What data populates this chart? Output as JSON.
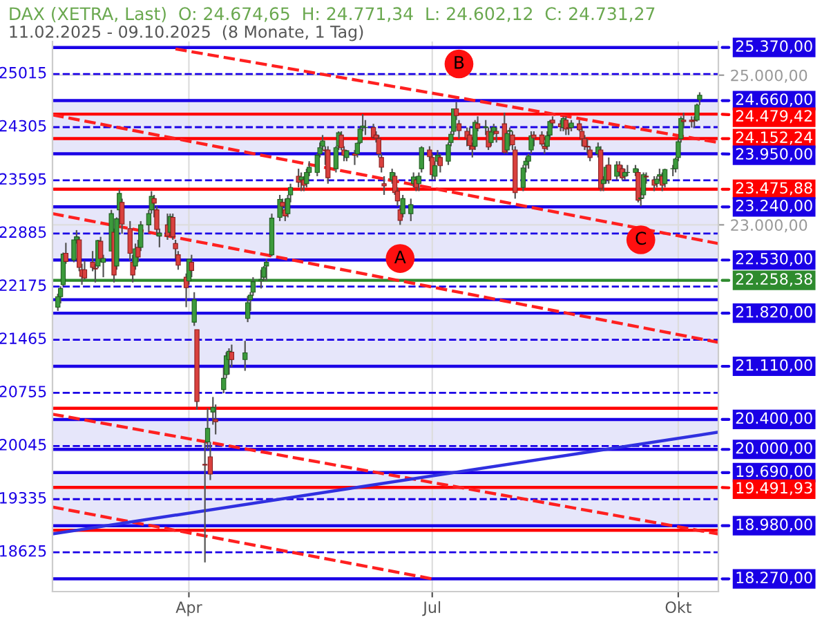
{
  "chart_data": {
    "type": "candlestick",
    "title": "DAX (XETRA, Last)  O: 24.674,65  H: 24.771,34  L: 24.602,12  C: 24.731,27",
    "subtitle": "11.02.2025 - 09.10.2025  (8 Monate, 1 Tag)",
    "x": [
      "2025-02-11",
      "2025-02-12",
      "2025-02-13",
      "2025-02-14",
      "2025-02-17",
      "2025-02-18",
      "2025-02-19",
      "2025-02-20",
      "2025-02-21",
      "2025-02-24",
      "2025-02-25",
      "2025-02-26",
      "2025-02-27",
      "2025-02-28",
      "2025-03-03",
      "2025-03-04",
      "2025-03-05",
      "2025-03-06",
      "2025-03-07",
      "2025-03-10",
      "2025-03-11",
      "2025-03-12",
      "2025-03-13",
      "2025-03-14",
      "2025-03-17",
      "2025-03-18",
      "2025-03-19",
      "2025-03-20",
      "2025-03-21",
      "2025-03-24",
      "2025-03-25",
      "2025-03-26",
      "2025-03-27",
      "2025-03-28",
      "2025-03-31",
      "2025-04-01",
      "2025-04-02",
      "2025-04-03",
      "2025-04-04",
      "2025-04-07",
      "2025-04-08",
      "2025-04-09",
      "2025-04-10",
      "2025-04-11",
      "2025-04-14",
      "2025-04-15",
      "2025-04-16",
      "2025-04-17",
      "2025-04-22",
      "2025-04-23",
      "2025-04-24",
      "2025-04-25",
      "2025-04-28",
      "2025-04-29",
      "2025-04-30",
      "2025-05-02",
      "2025-05-05",
      "2025-05-06",
      "2025-05-07",
      "2025-05-08",
      "2025-05-09",
      "2025-05-12",
      "2025-05-13",
      "2025-05-14",
      "2025-05-15",
      "2025-05-16",
      "2025-05-19",
      "2025-05-20",
      "2025-05-21",
      "2025-05-22",
      "2025-05-23",
      "2025-05-26",
      "2025-05-27",
      "2025-05-28",
      "2025-05-29",
      "2025-05-30",
      "2025-06-02",
      "2025-06-03",
      "2025-06-04",
      "2025-06-05",
      "2025-06-06",
      "2025-06-09",
      "2025-06-10",
      "2025-06-11",
      "2025-06-12",
      "2025-06-13",
      "2025-06-16",
      "2025-06-17",
      "2025-06-18",
      "2025-06-19",
      "2025-06-20",
      "2025-06-23",
      "2025-06-24",
      "2025-06-25",
      "2025-06-26",
      "2025-06-27",
      "2025-06-30",
      "2025-07-01",
      "2025-07-02",
      "2025-07-03",
      "2025-07-04",
      "2025-07-07",
      "2025-07-08",
      "2025-07-09",
      "2025-07-10",
      "2025-07-11",
      "2025-07-14",
      "2025-07-15",
      "2025-07-16",
      "2025-07-17",
      "2025-07-18",
      "2025-07-21",
      "2025-07-22",
      "2025-07-23",
      "2025-07-24",
      "2025-07-25",
      "2025-07-28",
      "2025-07-29",
      "2025-07-30",
      "2025-07-31",
      "2025-08-01",
      "2025-08-04",
      "2025-08-05",
      "2025-08-06",
      "2025-08-07",
      "2025-08-08",
      "2025-08-11",
      "2025-08-12",
      "2025-08-13",
      "2025-08-14",
      "2025-08-15",
      "2025-08-18",
      "2025-08-19",
      "2025-08-20",
      "2025-08-21",
      "2025-08-22",
      "2025-08-25",
      "2025-08-26",
      "2025-08-27",
      "2025-08-28",
      "2025-08-29",
      "2025-09-01",
      "2025-09-02",
      "2025-09-03",
      "2025-09-04",
      "2025-09-05",
      "2025-09-08",
      "2025-09-09",
      "2025-09-10",
      "2025-09-11",
      "2025-09-12",
      "2025-09-15",
      "2025-09-16",
      "2025-09-17",
      "2025-09-18",
      "2025-09-19",
      "2025-09-22",
      "2025-09-23",
      "2025-09-24",
      "2025-09-25",
      "2025-09-26",
      "2025-09-29",
      "2025-09-30",
      "2025-10-01",
      "2025-10-02",
      "2025-10-03",
      "2025-10-06",
      "2025-10-07",
      "2025-10-08",
      "2025-10-09"
    ],
    "ohlc": [
      [
        21900,
        22080,
        21850,
        22040
      ],
      [
        22040,
        22180,
        21950,
        22150
      ],
      [
        22200,
        22630,
        22180,
        22610
      ],
      [
        22620,
        22760,
        22480,
        22510
      ],
      [
        22530,
        22800,
        22500,
        22800
      ],
      [
        22800,
        22930,
        22750,
        22840
      ],
      [
        22800,
        22840,
        22380,
        22430
      ],
      [
        22400,
        22480,
        22200,
        22310
      ],
      [
        22400,
        22520,
        22270,
        22290
      ],
      [
        22500,
        22650,
        22380,
        22430
      ],
      [
        22420,
        22480,
        22230,
        22410
      ],
      [
        22450,
        22800,
        22420,
        22790
      ],
      [
        22780,
        22840,
        22500,
        22550
      ],
      [
        22500,
        22600,
        22300,
        22550
      ],
      [
        22650,
        23200,
        22650,
        23150
      ],
      [
        22900,
        22950,
        22230,
        22330
      ],
      [
        22450,
        23100,
        22400,
        23080
      ],
      [
        23200,
        23476,
        23000,
        23420
      ],
      [
        23300,
        23350,
        22880,
        23010
      ],
      [
        22950,
        23050,
        22520,
        22620
      ],
      [
        22500,
        22600,
        22230,
        22330
      ],
      [
        22450,
        22750,
        22400,
        22680
      ],
      [
        22700,
        22800,
        22500,
        22570
      ],
      [
        22700,
        23050,
        22650,
        23000
      ],
      [
        23000,
        23200,
        22900,
        23150
      ],
      [
        23200,
        23450,
        23150,
        23380
      ],
      [
        23350,
        23400,
        23100,
        23290
      ],
      [
        23200,
        23250,
        22850,
        22940
      ],
      [
        22850,
        22950,
        22700,
        22890
      ],
      [
        23000,
        23150,
        22800,
        22850
      ],
      [
        22900,
        23150,
        22850,
        23110
      ],
      [
        23100,
        23150,
        22800,
        22840
      ],
      [
        22750,
        22800,
        22550,
        22680
      ],
      [
        22600,
        22650,
        22400,
        22460
      ],
      [
        22300,
        22350,
        21900,
        22160
      ],
      [
        22250,
        22550,
        22200,
        22540
      ],
      [
        22500,
        22600,
        22300,
        22390
      ],
      [
        21700,
        22100,
        21650,
        22000
      ],
      [
        21600,
        21600,
        20530,
        20640
      ],
      [
        19800,
        20100,
        18490,
        19790
      ],
      [
        20100,
        20550,
        20000,
        20280
      ],
      [
        19900,
        20100,
        19590,
        19670
      ],
      [
        20500,
        20700,
        20330,
        20560
      ],
      [
        20400,
        20600,
        20200,
        20370
      ],
      [
        20800,
        21100,
        20750,
        20950
      ],
      [
        21000,
        21300,
        20950,
        21250
      ],
      [
        21200,
        21350,
        21000,
        21310
      ],
      [
        21300,
        21400,
        21100,
        21200
      ],
      [
        21200,
        21450,
        21050,
        21290
      ],
      [
        21750,
        22050,
        21700,
        21960
      ],
      [
        22000,
        22100,
        21850,
        22060
      ],
      [
        22100,
        22300,
        22050,
        22240
      ],
      [
        22250,
        22400,
        22150,
        22270
      ],
      [
        22300,
        22450,
        22250,
        22430
      ],
      [
        22450,
        22550,
        22250,
        22500
      ],
      [
        22600,
        23150,
        22580,
        23090
      ],
      [
        23100,
        23400,
        23050,
        23340
      ],
      [
        23300,
        23350,
        23150,
        23250
      ],
      [
        23200,
        23350,
        23050,
        23120
      ],
      [
        23150,
        23400,
        23100,
        23350
      ],
      [
        23400,
        23550,
        23300,
        23500
      ],
      [
        23650,
        23750,
        23500,
        23570
      ],
      [
        23600,
        23700,
        23450,
        23640
      ],
      [
        23600,
        23650,
        23450,
        23530
      ],
      [
        23550,
        23750,
        23500,
        23700
      ],
      [
        23700,
        23850,
        23650,
        23770
      ],
      [
        23700,
        23950,
        23650,
        23930
      ],
      [
        23950,
        24100,
        23900,
        24030
      ],
      [
        24050,
        24200,
        24000,
        24120
      ],
      [
        24000,
        24050,
        23800,
        23990
      ],
      [
        24000,
        24050,
        23550,
        23630
      ],
      [
        23750,
        24050,
        23700,
        24030
      ],
      [
        24050,
        24250,
        24000,
        24230
      ],
      [
        24200,
        24250,
        24000,
        24030
      ],
      [
        24000,
        24050,
        23850,
        23930
      ],
      [
        23900,
        24000,
        23850,
        23990
      ],
      [
        23950,
        24000,
        23800,
        23930
      ],
      [
        23950,
        24100,
        23900,
        24090
      ],
      [
        24100,
        24300,
        24080,
        24280
      ],
      [
        24300,
        24480,
        24250,
        24320
      ],
      [
        24300,
        24400,
        24200,
        24300
      ],
      [
        24300,
        24350,
        24150,
        24170
      ],
      [
        24200,
        24250,
        24100,
        24160
      ],
      [
        24150,
        24200,
        23900,
        23950
      ],
      [
        23900,
        23950,
        23700,
        23770
      ],
      [
        23550,
        23650,
        23400,
        23520
      ],
      [
        23600,
        23750,
        23550,
        23700
      ],
      [
        23650,
        23700,
        23400,
        23430
      ],
      [
        23450,
        23500,
        23250,
        23320
      ],
      [
        23200,
        23250,
        23000,
        23060
      ],
      [
        23150,
        23400,
        23100,
        23350
      ],
      [
        23150,
        23350,
        23050,
        23270
      ],
      [
        23550,
        23700,
        23500,
        23640
      ],
      [
        23600,
        23650,
        23450,
        23500
      ],
      [
        23550,
        23700,
        23450,
        23650
      ],
      [
        23750,
        24050,
        23700,
        24030
      ],
      [
        24000,
        24050,
        23850,
        23910
      ],
      [
        23900,
        23950,
        23600,
        23670
      ],
      [
        23650,
        23850,
        23600,
        23790
      ],
      [
        23850,
        24000,
        23800,
        23930
      ],
      [
        23900,
        23950,
        23700,
        23790
      ],
      [
        23850,
        24100,
        23800,
        24070
      ],
      [
        24100,
        24250,
        24050,
        24210
      ],
      [
        24250,
        24550,
        24200,
        24550
      ],
      [
        24550,
        24640,
        24400,
        24460
      ],
      [
        24350,
        24400,
        24150,
        24260
      ],
      [
        24250,
        24300,
        24050,
        24160
      ],
      [
        24200,
        24300,
        24000,
        24060
      ],
      [
        24050,
        24100,
        23900,
        24010
      ],
      [
        24050,
        24400,
        24000,
        24370
      ],
      [
        24350,
        24450,
        24250,
        24290
      ],
      [
        24300,
        24400,
        24200,
        24310
      ],
      [
        24250,
        24300,
        24000,
        24040
      ],
      [
        24100,
        24300,
        24050,
        24240
      ],
      [
        24250,
        24350,
        24200,
        24300
      ],
      [
        24250,
        24300,
        24100,
        24220
      ],
      [
        24350,
        24500,
        23950,
        23970
      ],
      [
        24000,
        24250,
        23950,
        24220
      ],
      [
        24250,
        24300,
        24050,
        24260
      ],
      [
        24200,
        24250,
        24000,
        24070
      ],
      [
        24000,
        24050,
        23350,
        23430
      ],
      [
        23500,
        23800,
        23450,
        23760
      ],
      [
        23800,
        23900,
        23700,
        23850
      ],
      [
        23850,
        23950,
        23750,
        23920
      ],
      [
        24000,
        24250,
        23950,
        24190
      ],
      [
        24200,
        24250,
        24050,
        24160
      ],
      [
        24200,
        24250,
        24050,
        24080
      ],
      [
        24050,
        24100,
        23950,
        24020
      ],
      [
        24050,
        24250,
        24000,
        24190
      ],
      [
        24200,
        24400,
        24150,
        24380
      ],
      [
        24400,
        24450,
        24300,
        24360
      ],
      [
        24350,
        24400,
        24250,
        24310
      ],
      [
        24300,
        24450,
        24250,
        24420
      ],
      [
        24400,
        24450,
        24200,
        24280
      ],
      [
        24300,
        24350,
        24200,
        24290
      ],
      [
        24300,
        24400,
        24250,
        24360
      ],
      [
        24350,
        24400,
        24250,
        24270
      ],
      [
        24250,
        24300,
        24050,
        24150
      ],
      [
        24150,
        24200,
        24000,
        24050
      ],
      [
        24050,
        24150,
        23950,
        24040
      ],
      [
        24000,
        24050,
        23850,
        23900
      ],
      [
        23950,
        24100,
        23900,
        24040
      ],
      [
        24000,
        24050,
        23450,
        23490
      ],
      [
        23550,
        23650,
        23450,
        23600
      ],
      [
        23600,
        23800,
        23550,
        23770
      ],
      [
        23800,
        23900,
        23550,
        23600
      ],
      [
        23650,
        23850,
        23600,
        23800
      ],
      [
        23800,
        23850,
        23650,
        23710
      ],
      [
        23750,
        23800,
        23600,
        23630
      ],
      [
        23650,
        23750,
        23600,
        23700
      ],
      [
        23700,
        23800,
        23650,
        23700
      ],
      [
        23700,
        23800,
        23650,
        23750
      ],
      [
        23700,
        23750,
        23300,
        23330
      ],
      [
        23350,
        23450,
        23250,
        23360
      ],
      [
        23400,
        23700,
        23350,
        23670
      ],
      [
        23650,
        23700,
        23550,
        23640
      ],
      [
        23600,
        23650,
        23450,
        23530
      ],
      [
        23550,
        23650,
        23500,
        23610
      ],
      [
        23650,
        23750,
        23600,
        23670
      ],
      [
        23650,
        23700,
        23450,
        23530
      ],
      [
        23550,
        23750,
        23500,
        23740
      ],
      [
        23750,
        23800,
        23650,
        23750
      ],
      [
        23750,
        23900,
        23700,
        23880
      ],
      [
        23900,
        24150,
        23850,
        24110
      ],
      [
        24150,
        24450,
        24100,
        24420
      ],
      [
        24400,
        24500,
        24300,
        24380
      ],
      [
        24400,
        24450,
        24300,
        24380
      ],
      [
        24400,
        24450,
        24300,
        24390
      ],
      [
        24400,
        24620,
        24380,
        24600
      ],
      [
        24674.65,
        24771.34,
        24602.12,
        24731.27
      ]
    ],
    "series": [
      {
        "type": "line",
        "color": "#ff2020",
        "line_style": "dashed",
        "x": [
          "2025-03-27",
          "2025-10-16"
        ],
        "values": [
          25350,
          24100
        ]
      },
      {
        "type": "line",
        "color": "#ff2020",
        "line_style": "dashed",
        "x": [
          "2025-02-09",
          "2025-10-16"
        ],
        "values": [
          24470,
          22750
        ]
      },
      {
        "type": "line",
        "color": "#ff2020",
        "line_style": "dashed",
        "x": [
          "2025-02-09",
          "2025-10-16"
        ],
        "values": [
          23150,
          21430
        ]
      },
      {
        "type": "line",
        "color": "#ff2020",
        "line_style": "dashed",
        "x": [
          "2025-02-09",
          "2025-10-16"
        ],
        "values": [
          20470,
          18870
        ]
      },
      {
        "type": "line",
        "color": "#ff2020",
        "line_style": "dashed",
        "x": [
          "2025-02-09",
          "2025-07-01"
        ],
        "values": [
          19230,
          18270
        ]
      },
      {
        "type": "line",
        "color": "#3030e0",
        "line_style": "solid",
        "x": [
          "2025-02-09",
          "2025-10-16"
        ],
        "values": [
          18870,
          20230
        ]
      }
    ],
    "xlim": [
      "2025-02-09",
      "2025-10-16"
    ],
    "xticks": [
      {
        "value": "2025-04-01",
        "label": "Apr"
      },
      {
        "value": "2025-07-01",
        "label": "Jul"
      },
      {
        "value": "2025-10-01",
        "label": "Okt"
      }
    ],
    "ylim": [
      18100,
      25450
    ],
    "yticks": [
      {
        "value": 25000,
        "label": "25.000,00"
      },
      {
        "value": 23000,
        "label": "23.000,00"
      }
    ],
    "grid": true,
    "bands": [
      {
        "axis": "y",
        "from": 23950,
        "to": 24660,
        "color": "#e6e6fa"
      },
      {
        "axis": "y",
        "from": 22530,
        "to": 23240,
        "color": "#e6e6fa"
      },
      {
        "axis": "y",
        "from": 21110,
        "to": 21820,
        "color": "#e6e6fa"
      },
      {
        "axis": "y",
        "from": 20000,
        "to": 20400,
        "color": "#e6e6fa"
      },
      {
        "axis": "y",
        "from": 18980,
        "to": 19690,
        "color": "#e6e6fa"
      }
    ],
    "ref_lines": [
      {
        "axis": "y",
        "value": 25370,
        "label": "25.370,00",
        "color": "#1a00e6",
        "line_style": "solid"
      },
      {
        "axis": "y",
        "value": 24660,
        "label": "24.660,00",
        "color": "#1a00e6",
        "line_style": "solid"
      },
      {
        "axis": "y",
        "value": 24479.42,
        "label": "24.479,42",
        "color": "#ff0000",
        "line_style": "solid"
      },
      {
        "axis": "y",
        "value": 24152.24,
        "label": "24.152,24",
        "color": "#ff0000",
        "line_style": "solid"
      },
      {
        "axis": "y",
        "value": 23950,
        "label": "23.950,00",
        "color": "#1a00e6",
        "line_style": "solid"
      },
      {
        "axis": "y",
        "value": 23475.88,
        "label": "23.475,88",
        "color": "#ff0000",
        "line_style": "solid"
      },
      {
        "axis": "y",
        "value": 23240,
        "label": "23.240,00",
        "color": "#1a00e6",
        "line_style": "solid"
      },
      {
        "axis": "y",
        "value": 22530,
        "label": "22.530,00",
        "color": "#1a00e6",
        "line_style": "solid"
      },
      {
        "axis": "y",
        "value": 22258.38,
        "label": "22.258,38",
        "color": "#2e8b2e",
        "line_style": "solid"
      },
      {
        "axis": "y",
        "value": 22000,
        "label": null,
        "color": "#1a00e6",
        "line_style": "solid"
      },
      {
        "axis": "y",
        "value": 21820,
        "label": "21.820,00",
        "color": "#1a00e6",
        "line_style": "solid"
      },
      {
        "axis": "y",
        "value": 21110,
        "label": "21.110,00",
        "color": "#1a00e6",
        "line_style": "solid"
      },
      {
        "axis": "y",
        "value": 20550,
        "label": null,
        "color": "#ff0000",
        "line_style": "solid"
      },
      {
        "axis": "y",
        "value": 20400,
        "label": "20.400,00",
        "color": "#1a00e6",
        "line_style": "solid"
      },
      {
        "axis": "y",
        "value": 20000,
        "label": "20.000,00",
        "color": "#1a00e6",
        "line_style": "solid"
      },
      {
        "axis": "y",
        "value": 19690,
        "label": "19.690,00",
        "color": "#1a00e6",
        "line_style": "solid"
      },
      {
        "axis": "y",
        "value": 19491.93,
        "label": "19.491,93",
        "color": "#ff0000",
        "line_style": "solid"
      },
      {
        "axis": "y",
        "value": 18980,
        "label": "18.980,00",
        "color": "#1a00e6",
        "line_style": "solid"
      },
      {
        "axis": "y",
        "value": 18920,
        "label": null,
        "color": "#ff0000",
        "line_style": "solid"
      },
      {
        "axis": "y",
        "value": 18270,
        "label": "18.270,00",
        "color": "#1a00e6",
        "line_style": "solid"
      },
      {
        "axis": "y",
        "value": 25015,
        "label": "25015",
        "color": "#1a00e6",
        "line_style": "dashed"
      },
      {
        "axis": "y",
        "value": 24305,
        "label": "24305",
        "color": "#1a00e6",
        "line_style": "dashed"
      },
      {
        "axis": "y",
        "value": 23595,
        "label": "23595",
        "color": "#1a00e6",
        "line_style": "dashed"
      },
      {
        "axis": "y",
        "value": 22885,
        "label": "22885",
        "color": "#1a00e6",
        "line_style": "dashed"
      },
      {
        "axis": "y",
        "value": 22175,
        "label": "22175",
        "color": "#1a00e6",
        "line_style": "dashed"
      },
      {
        "axis": "y",
        "value": 21465,
        "label": "21465",
        "color": "#1a00e6",
        "line_style": "dashed"
      },
      {
        "axis": "y",
        "value": 20755,
        "label": "20755",
        "color": "#1a00e6",
        "line_style": "dashed"
      },
      {
        "axis": "y",
        "value": 20045,
        "label": "20045",
        "color": "#1a00e6",
        "line_style": "dashed"
      },
      {
        "axis": "y",
        "value": 19335,
        "label": "19335",
        "color": "#1a00e6",
        "line_style": "dashed"
      },
      {
        "axis": "y",
        "value": 18625,
        "label": "18625",
        "color": "#1a00e6",
        "line_style": "dashed"
      }
    ],
    "annotations": [
      {
        "text": "A",
        "x": "2025-06-19",
        "y": 22550
      },
      {
        "text": "B",
        "x": "2025-07-11",
        "y": 25150
      },
      {
        "text": "C",
        "x": "2025-09-17",
        "y": 22800
      }
    ],
    "legend": false
  }
}
